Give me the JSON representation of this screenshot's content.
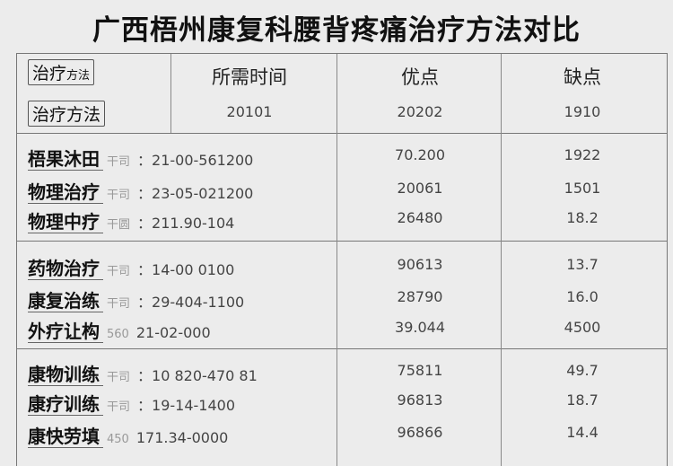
{
  "title": "广西梧州康复科腰背疼痛治疗方法对比",
  "header": {
    "method_label_1a": "治疗",
    "method_label_1b": "方法",
    "method_label_2": "治疗方法",
    "columns": [
      "所需时间",
      "优点",
      "缺点"
    ],
    "values": [
      "20101",
      "20202",
      "1910"
    ]
  },
  "groups": [
    {
      "rows": [
        {
          "method": "梧果沐田",
          "prefix": "干司",
          "time": "：21-00-561200",
          "pros": "70.200",
          "cons": "1922"
        },
        {
          "method": "物理治疗",
          "prefix": "干司",
          "time": "：23-05-021200",
          "pros": "20061",
          "cons": "1501"
        },
        {
          "method": "物理中疗",
          "prefix": "干圆",
          "time": "：211.90-104",
          "pros": "26480",
          "cons": "18.2"
        }
      ]
    },
    {
      "rows": [
        {
          "method": "药物治疗",
          "prefix": "干司",
          "time": "：14-00 0100",
          "pros": "90613",
          "cons": "13.7"
        },
        {
          "method": "康复治练",
          "prefix": "干司",
          "time": "：29-404-1100",
          "pros": "28790",
          "cons": "16.0"
        },
        {
          "method": "外疗让构",
          "prefix": "560",
          "time": "21-02-000",
          "pros": "39.044",
          "cons": "4500"
        }
      ]
    },
    {
      "rows": [
        {
          "method": "康物训练",
          "prefix": "干司",
          "time": "：10 820-470 81",
          "pros": "75811",
          "cons": "49.7"
        },
        {
          "method": "康疗训练",
          "prefix": "干司",
          "time": "：19-14-1400",
          "pros": "96813",
          "cons": "18.7"
        },
        {
          "method": "康快劳填",
          "prefix": "450",
          "time": "171.34-0000",
          "pros": "96866",
          "cons": "14.4"
        }
      ]
    }
  ]
}
